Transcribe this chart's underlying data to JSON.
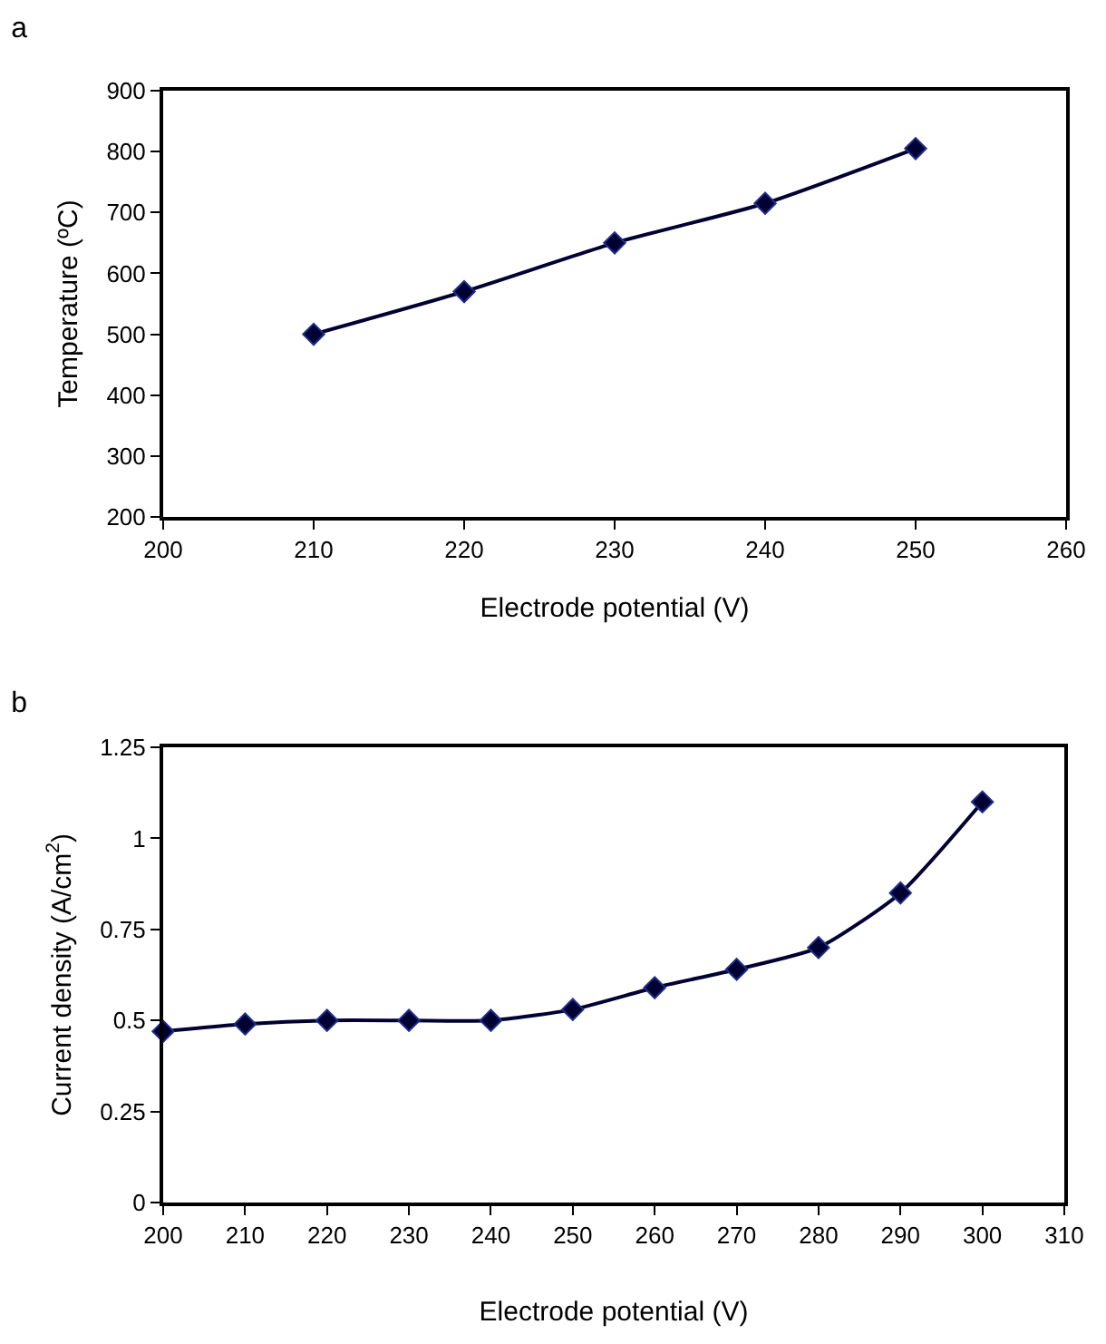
{
  "chart_data": [
    {
      "type": "line",
      "title": "a",
      "xlabel": "Electrode potential (V)",
      "ylabel": "Temperature (ºC)",
      "x": [
        210,
        220,
        230,
        240,
        250
      ],
      "series": [
        {
          "color": "#000033",
          "values": [
            500,
            570,
            650,
            715,
            805
          ]
        }
      ],
      "xlim": [
        200,
        260
      ],
      "xticks": [
        200,
        210,
        220,
        230,
        240,
        250,
        260
      ],
      "ylim": [
        200,
        900
      ],
      "yticks": [
        200,
        300,
        400,
        500,
        600,
        700,
        800,
        900
      ],
      "grid": false,
      "legend": false,
      "marker": "diamond",
      "line_style": "solid"
    },
    {
      "type": "line",
      "title": "b",
      "xlabel": "Electrode potential (V)",
      "ylabel": "Current density (A/cm$^{2}$)",
      "x": [
        200,
        210,
        220,
        230,
        240,
        250,
        260,
        270,
        280,
        290,
        300
      ],
      "series": [
        {
          "color": "#000033",
          "values": [
            0.47,
            0.49,
            0.5,
            0.5,
            0.5,
            0.53,
            0.59,
            0.64,
            0.7,
            0.85,
            1.1
          ]
        }
      ],
      "xlim": [
        200,
        310
      ],
      "xticks": [
        200,
        210,
        220,
        230,
        240,
        250,
        260,
        270,
        280,
        290,
        300,
        310
      ],
      "ylim": [
        0,
        1.25
      ],
      "yticks": [
        0,
        0.25,
        0.5,
        0.75,
        1,
        1.25
      ],
      "grid": false,
      "legend": false,
      "marker": "diamond",
      "line_style": "solid"
    }
  ]
}
